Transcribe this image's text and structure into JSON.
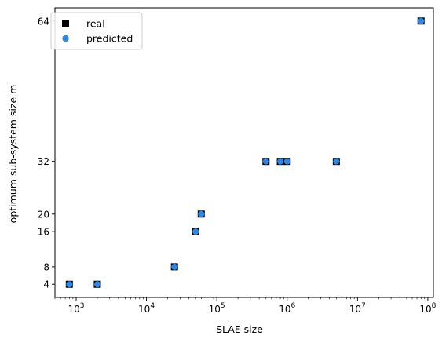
{
  "chart_data": {
    "type": "scatter",
    "title": "",
    "xlabel": "SLAE size",
    "ylabel": "optimum sub-system size m",
    "xscale": "log",
    "xlim": [
      500,
      120000000
    ],
    "ylim": [
      1,
      67
    ],
    "xticks": [
      {
        "value": 1000,
        "base": "10",
        "exp": "3"
      },
      {
        "value": 10000,
        "base": "10",
        "exp": "4"
      },
      {
        "value": 100000,
        "base": "10",
        "exp": "5"
      },
      {
        "value": 1000000,
        "base": "10",
        "exp": "6"
      },
      {
        "value": 10000000,
        "base": "10",
        "exp": "7"
      },
      {
        "value": 100000000,
        "base": "10",
        "exp": "8"
      }
    ],
    "yticks": [
      {
        "value": 4,
        "label": "4"
      },
      {
        "value": 8,
        "label": "8"
      },
      {
        "value": 16,
        "label": "16"
      },
      {
        "value": 20,
        "label": "20"
      },
      {
        "value": 32,
        "label": "32"
      },
      {
        "value": 64,
        "label": "64"
      }
    ],
    "legend_position": "top-left",
    "grid": false,
    "series": [
      {
        "name": "real",
        "marker": "square",
        "color": "#000000",
        "x": [
          800,
          2000,
          25000,
          50000,
          60000,
          500000,
          800000,
          1000000,
          5000000,
          80000000
        ],
        "y": [
          4,
          4,
          8,
          16,
          20,
          32,
          32,
          32,
          32,
          64
        ]
      },
      {
        "name": "predicted",
        "marker": "circle",
        "color": "#2a88e6",
        "x": [
          800,
          2000,
          25000,
          50000,
          60000,
          500000,
          800000,
          1000000,
          5000000,
          80000000
        ],
        "y": [
          4,
          4,
          8,
          16,
          20,
          32,
          32,
          32,
          32,
          64
        ]
      }
    ]
  }
}
